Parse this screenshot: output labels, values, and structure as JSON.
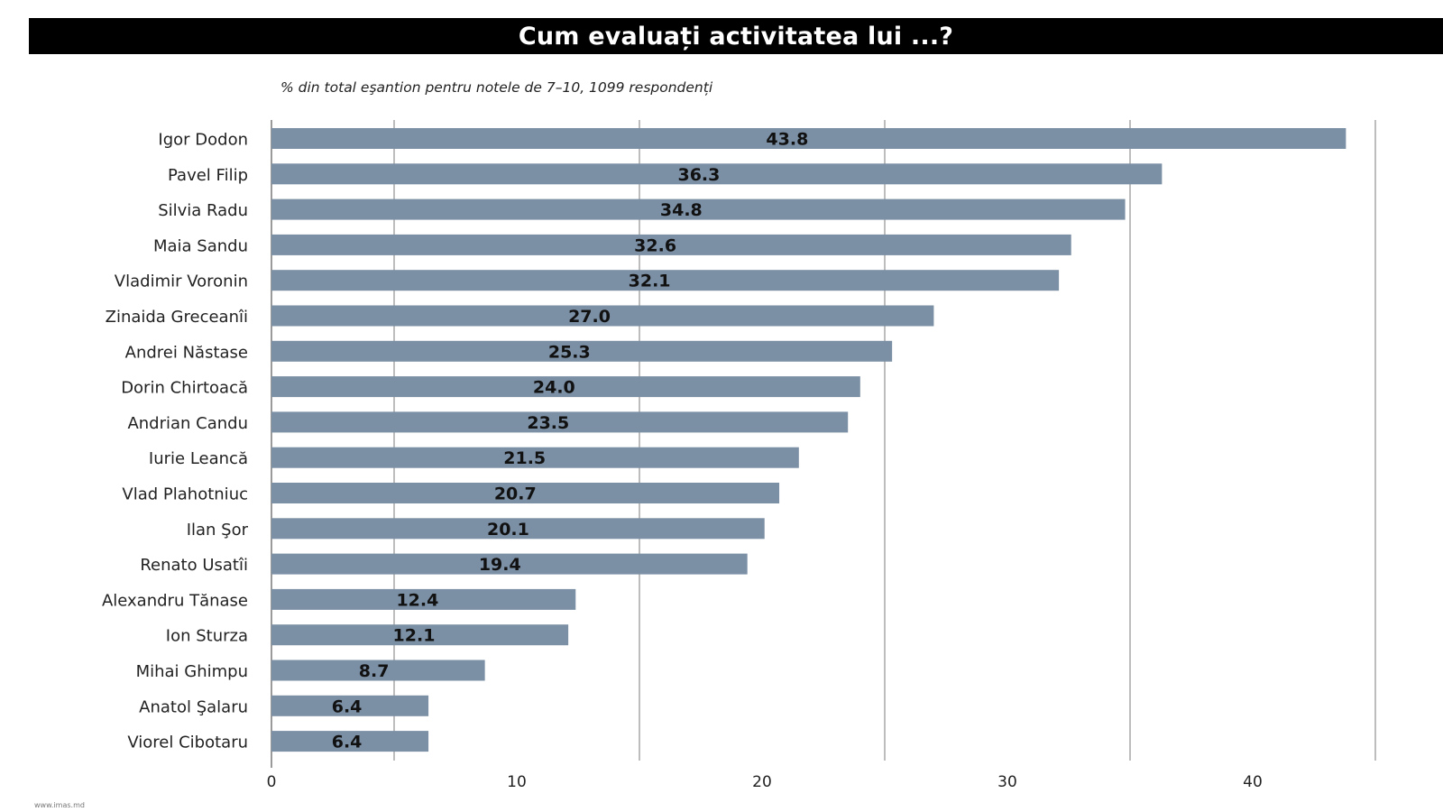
{
  "header": {
    "title": "Cum evaluați activitatea lui ...?"
  },
  "source_note": "www.imas.md",
  "colors": {
    "bar": "#7b8fa5",
    "grid": "#bdbdbd",
    "axis": "#9a9a9a",
    "text": "#222222"
  },
  "chart_data": {
    "type": "bar",
    "orientation": "horizontal",
    "title": "Cum evaluați activitatea lui ...?",
    "subtitle": "% din total eşantion pentru notele de 7–10, 1099 respondenți",
    "xlabel": "",
    "ylabel": "",
    "xlim": [
      0,
      45
    ],
    "ticks": [
      0,
      10,
      20,
      30,
      40
    ],
    "gridlines": [
      5,
      15,
      25,
      35,
      45
    ],
    "grid": true,
    "categories": [
      "Igor Dodon",
      "Pavel Filip",
      "Silvia Radu",
      "Maia Sandu",
      "Vladimir Voronin",
      "Zinaida Greceanîi",
      "Andrei Năstase",
      "Dorin Chirtoacă",
      "Andrian Candu",
      "Iurie Leancă",
      "Vlad Plahotniuc",
      "Ilan Şor",
      "Renato Usatîi",
      "Alexandru Tănase",
      "Ion Sturza",
      "Mihai Ghimpu",
      "Anatol Şalaru",
      "Viorel Cibotaru"
    ],
    "values": [
      43.8,
      36.3,
      34.8,
      32.6,
      32.1,
      27.0,
      25.3,
      24.0,
      23.5,
      21.5,
      20.7,
      20.1,
      19.4,
      12.4,
      12.1,
      8.7,
      6.4,
      6.4
    ],
    "labels": [
      "43.8",
      "36.3",
      "34.8",
      "32.6",
      "32.1",
      "27.0",
      "25.3",
      "24.0",
      "23.5",
      "21.5",
      "20.7",
      "20.1",
      "19.4",
      "12.4",
      "12.1",
      "8.7",
      "6.4",
      "6.4"
    ]
  }
}
